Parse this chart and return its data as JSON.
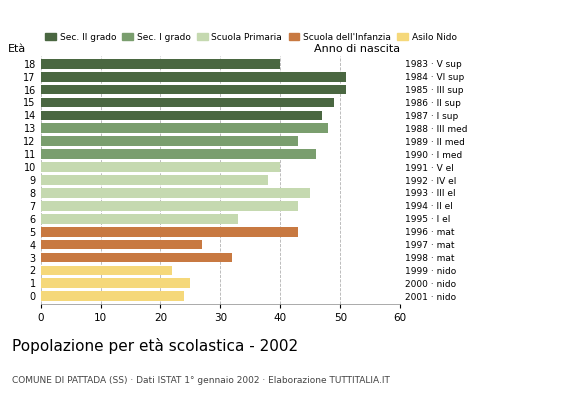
{
  "ages": [
    18,
    17,
    16,
    15,
    14,
    13,
    12,
    11,
    10,
    9,
    8,
    7,
    6,
    5,
    4,
    3,
    2,
    1,
    0
  ],
  "values": [
    40,
    51,
    51,
    49,
    47,
    48,
    43,
    46,
    40,
    38,
    45,
    43,
    33,
    43,
    27,
    32,
    22,
    25,
    24
  ],
  "anno_nascita": [
    "1983 · V sup",
    "1984 · VI sup",
    "1985 · III sup",
    "1986 · II sup",
    "1987 · I sup",
    "1988 · III med",
    "1989 · II med",
    "1990 · I med",
    "1991 · V el",
    "1992 · IV el",
    "1993 · III el",
    "1994 · II el",
    "1995 · I el",
    "1996 · mat",
    "1997 · mat",
    "1998 · mat",
    "1999 · nido",
    "2000 · nido",
    "2001 · nido"
  ],
  "colors": {
    "Sec. II grado": "#4a6741",
    "Sec. I grado": "#7a9e6e",
    "Scuola Primaria": "#c5d9b0",
    "Scuola dell'Infanzia": "#c87941",
    "Asilo Nido": "#f5d87a"
  },
  "age_category": {
    "18": "Sec. II grado",
    "17": "Sec. II grado",
    "16": "Sec. II grado",
    "15": "Sec. II grado",
    "14": "Sec. II grado",
    "13": "Sec. I grado",
    "12": "Sec. I grado",
    "11": "Sec. I grado",
    "10": "Scuola Primaria",
    "9": "Scuola Primaria",
    "8": "Scuola Primaria",
    "7": "Scuola Primaria",
    "6": "Scuola Primaria",
    "5": "Scuola dell'Infanzia",
    "4": "Scuola dell'Infanzia",
    "3": "Scuola dell'Infanzia",
    "2": "Asilo Nido",
    "1": "Asilo Nido",
    "0": "Asilo Nido"
  },
  "title": "Popolazione per età scolastica - 2002",
  "subtitle": "COMUNE DI PATTADA (SS) · Dati ISTAT 1° gennaio 2002 · Elaborazione TUTTITALIA.IT",
  "label_eta": "Età",
  "label_anno": "Anno di nascita",
  "xlim": [
    0,
    60
  ],
  "xticks": [
    0,
    10,
    20,
    30,
    40,
    50,
    60
  ],
  "grid_color": "#aaaaaa",
  "bg_color": "#ffffff",
  "bar_height": 0.75,
  "legend_order": [
    "Sec. II grado",
    "Sec. I grado",
    "Scuola Primaria",
    "Scuola dell'Infanzia",
    "Asilo Nido"
  ]
}
